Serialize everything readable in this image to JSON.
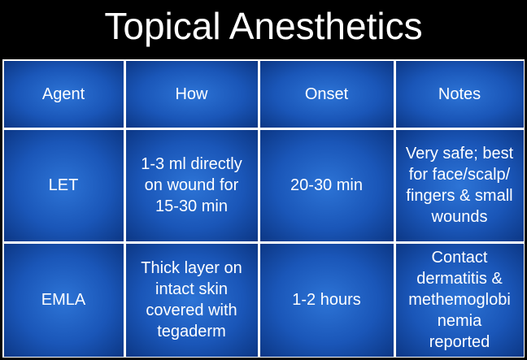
{
  "title": "Topical Anesthetics",
  "table": {
    "header": [
      [
        "Agent"
      ],
      [
        "How"
      ],
      [
        "Onset"
      ],
      [
        "Notes"
      ]
    ],
    "rows": [
      [
        [
          "LET"
        ],
        [
          "1-3 ml directly",
          "on wound for",
          "15-30 min"
        ],
        [
          "20-30 min"
        ],
        [
          "Very safe; best",
          "for face/scalp/",
          "fingers & small",
          "wounds"
        ]
      ],
      [
        [
          "EMLA"
        ],
        [
          "Thick layer on",
          "intact skin",
          "covered with",
          "tegaderm"
        ],
        [
          "1-2 hours"
        ],
        [
          "Contact",
          "dermatitis &",
          "methemoglobi",
          "nemia",
          "reported"
        ]
      ]
    ]
  }
}
